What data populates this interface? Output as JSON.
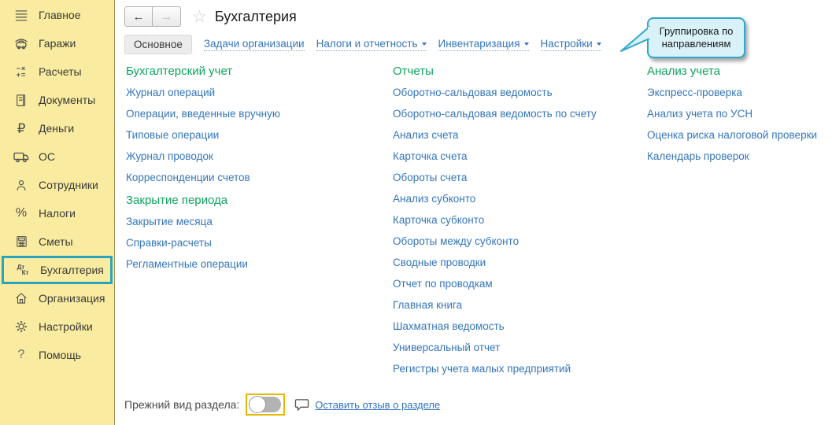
{
  "app": {
    "title": "Бухгалтерия"
  },
  "toolbar": {
    "back_icon": "←",
    "forward_icon": "→",
    "star_icon": "☆"
  },
  "sidebar": {
    "items": [
      {
        "label": "Главное",
        "icon": "menu-icon",
        "selected": false
      },
      {
        "label": "Гаражи",
        "icon": "garage-icon",
        "selected": false
      },
      {
        "label": "Расчеты",
        "icon": "calculations-icon",
        "selected": false
      },
      {
        "label": "Документы",
        "icon": "documents-icon",
        "selected": false
      },
      {
        "label": "Деньги",
        "icon": "ruble-icon",
        "selected": false
      },
      {
        "label": "ОС",
        "icon": "truck-icon",
        "selected": false
      },
      {
        "label": "Сотрудники",
        "icon": "person-icon",
        "selected": false
      },
      {
        "label": "Налоги",
        "icon": "percent-icon",
        "selected": false
      },
      {
        "label": "Сметы",
        "icon": "calculator-icon",
        "selected": false
      },
      {
        "label": "Бухгалтерия",
        "icon": "dt-kt-icon",
        "selected": true
      },
      {
        "label": "Организация",
        "icon": "home-icon",
        "selected": false
      },
      {
        "label": "Настройки",
        "icon": "gear-icon",
        "selected": false
      },
      {
        "label": "Помощь",
        "icon": "help-icon",
        "selected": false
      }
    ]
  },
  "tabs": [
    {
      "label": "Основное",
      "active": true,
      "dropdown": false
    },
    {
      "label": "Задачи организации",
      "active": false,
      "dropdown": false
    },
    {
      "label": "Налоги и отчетность",
      "active": false,
      "dropdown": true
    },
    {
      "label": "Инвентаризация",
      "active": false,
      "dropdown": true
    },
    {
      "label": "Настройки",
      "active": false,
      "dropdown": true
    }
  ],
  "tooltip": {
    "text": "Группировка по направлениям"
  },
  "sections": [
    {
      "title": "Бухгалтерский учет",
      "column": 1,
      "links": [
        "Журнал операций",
        "Операции, введенные вручную",
        "Типовые операции",
        "Журнал проводок",
        "Корреспонденции счетов"
      ]
    },
    {
      "title": "Закрытие периода",
      "column": 1,
      "links": [
        "Закрытие месяца",
        "Справки-расчеты",
        "Регламентные операции"
      ]
    },
    {
      "title": "Отчеты",
      "column": 2,
      "links": [
        "Оборотно-сальдовая ведомость",
        "Оборотно-сальдовая ведомость по счету",
        "Анализ счета",
        "Карточка счета",
        "Обороты счета",
        "Анализ субконто",
        "Карточка субконто",
        "Обороты между субконто",
        "Сводные проводки",
        "Отчет по проводкам",
        "Главная книга",
        "Шахматная ведомость",
        "Универсальный отчет",
        "Регистры учета малых предприятий"
      ]
    },
    {
      "title": "Анализ учета",
      "column": 3,
      "links": [
        "Экспресс-проверка",
        "Анализ учета по УСН",
        "Оценка риска налоговой проверки",
        "Календарь проверок"
      ]
    }
  ],
  "footer": {
    "legacy_label": "Прежний вид раздела:",
    "toggle_state": "off",
    "feedback_label": "Оставить отзыв о разделе"
  },
  "colors": {
    "sidebar_bg": "#F9EB9F",
    "sidebar_border": "#9C9055",
    "selected_highlight": "#29A3BE",
    "section_green": "#0CA45E",
    "link_blue": "#3576BB",
    "tooltip_bg": "#D9F2F9",
    "tooltip_border": "#2FA6CC",
    "toggle_focus": "#E8B800",
    "active_tab_bg": "#ECECEC"
  }
}
